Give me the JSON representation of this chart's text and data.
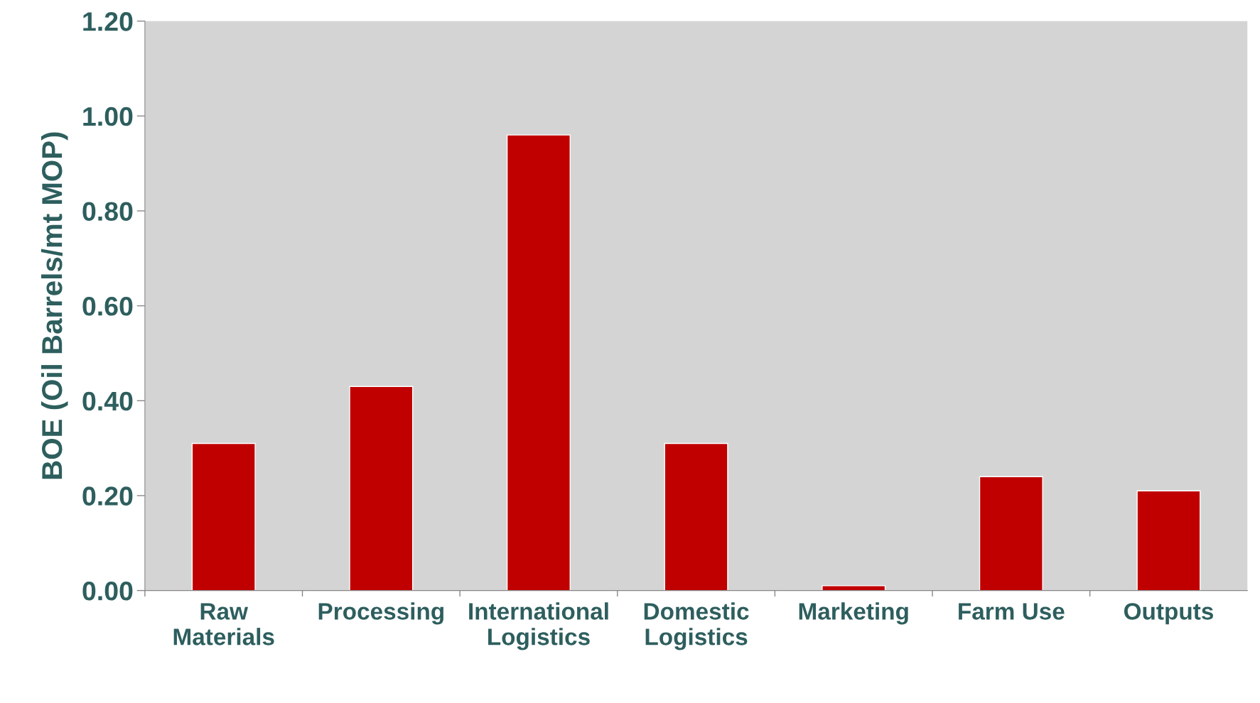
{
  "chart_data": {
    "type": "bar",
    "ylabel": "BOE (Oil Barrels/mt MOP)",
    "categories": [
      "Raw\nMaterials",
      "Processing",
      "International\nLogistics",
      "Domestic\nLogistics",
      "Marketing",
      "Farm Use",
      "Outputs"
    ],
    "values": [
      0.31,
      0.43,
      0.96,
      0.31,
      0.01,
      0.24,
      0.21
    ],
    "color": "#c00000",
    "ylim": [
      0,
      1.2
    ],
    "yticks": [
      {
        "value": 0,
        "label": "0.00"
      },
      {
        "value": 0.2,
        "label": "0.20"
      },
      {
        "value": 0.4,
        "label": "0.40"
      },
      {
        "value": 0.6,
        "label": "0.60"
      },
      {
        "value": 0.8,
        "label": "0.80"
      },
      {
        "value": 1.0,
        "label": "1.00"
      },
      {
        "value": 1.2,
        "label": "1.20"
      }
    ],
    "grid": false
  }
}
